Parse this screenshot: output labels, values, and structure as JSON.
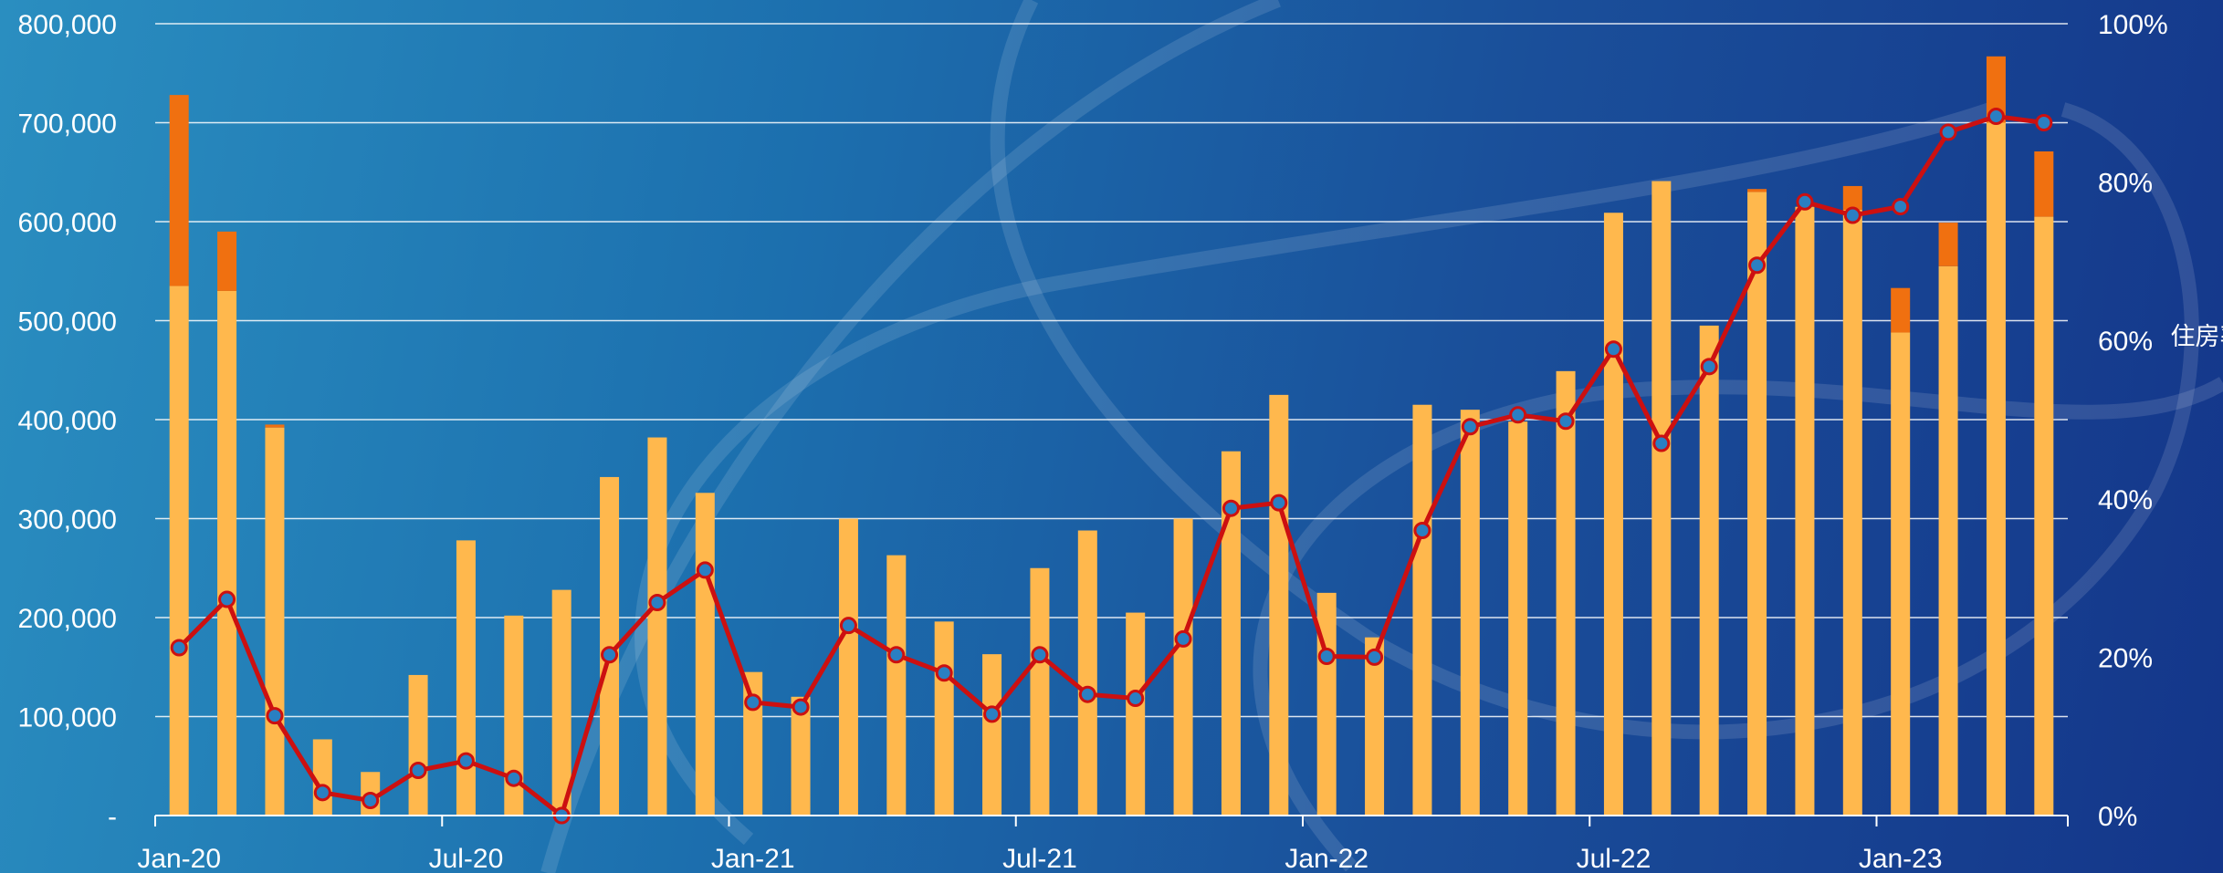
{
  "chart_data": {
    "type": "bar",
    "stacked": true,
    "categories": [
      "Jan-20",
      "Feb-20",
      "Mar-20",
      "Apr-20",
      "May-20",
      "Jun-20",
      "Jul-20",
      "Aug-20",
      "Sep-20",
      "Oct-20",
      "Nov-20",
      "Dec-20",
      "Jan-21",
      "Feb-21",
      "Mar-21",
      "Apr-21",
      "May-21",
      "Jun-21",
      "Jul-21",
      "Aug-21",
      "Sep-21",
      "Oct-21",
      "Nov-21",
      "Dec-21",
      "Jan-22",
      "Feb-22",
      "Mar-22",
      "Apr-22",
      "May-22",
      "Jun-22",
      "Jul-22",
      "Aug-22",
      "Sep-22",
      "Oct-22",
      "Nov-22",
      "Dec-22",
      "Jan-23",
      "Feb-23",
      "Mar-23",
      "Apr-23"
    ],
    "x_tick_labels": [
      {
        "index": 0,
        "label": "Jan-20"
      },
      {
        "index": 6,
        "label": "Jul-20"
      },
      {
        "index": 12,
        "label": "Jan-21"
      },
      {
        "index": 18,
        "label": "Jul-21"
      },
      {
        "index": 24,
        "label": "Jan-22"
      },
      {
        "index": 30,
        "label": "Jul-22"
      },
      {
        "index": 36,
        "label": "Jan-23"
      }
    ],
    "series": [
      {
        "type": "bar",
        "color": "#ffb84d",
        "values": [
          535000,
          530000,
          392000,
          77000,
          44000,
          142000,
          278000,
          202000,
          228000,
          342000,
          382000,
          326000,
          145000,
          120000,
          300000,
          263000,
          196000,
          163000,
          250000,
          288000,
          205000,
          300000,
          368000,
          425000,
          225000,
          180000,
          415000,
          410000,
          398000,
          449000,
          609000,
          641000,
          495000,
          630000,
          615000,
          612000,
          488000,
          555000,
          700000,
          605000
        ]
      },
      {
        "type": "bar",
        "color": "#f07010",
        "values": [
          193000,
          60000,
          3000,
          0,
          0,
          0,
          0,
          0,
          0,
          0,
          0,
          0,
          0,
          0,
          0,
          0,
          0,
          0,
          0,
          0,
          0,
          0,
          0,
          0,
          0,
          0,
          0,
          0,
          0,
          0,
          0,
          0,
          0,
          3000,
          0,
          24000,
          45000,
          44000,
          67000,
          66000
        ]
      },
      {
        "type": "line",
        "axis": "right",
        "color": "#cc1010",
        "marker_color": "#2a7fc2",
        "values": [
          21.2,
          27.3,
          12.6,
          2.9,
          1.9,
          5.7,
          6.9,
          4.7,
          0.0,
          20.3,
          26.9,
          31.0,
          14.3,
          13.7,
          24.0,
          20.3,
          18.0,
          12.8,
          20.3,
          15.3,
          14.8,
          22.3,
          38.8,
          39.5,
          20.1,
          20.0,
          36.0,
          49.1,
          50.6,
          49.8,
          58.9,
          47.0,
          56.7,
          69.5,
          77.5,
          75.8,
          76.9,
          86.3,
          88.3,
          87.5
        ]
      }
    ],
    "y_axis_left": {
      "min": 0,
      "max": 800000,
      "tick_labels": [
        "-",
        "100,000",
        "200,000",
        "300,000",
        "400,000",
        "500,000",
        "600,000",
        "700,000",
        "800,000"
      ]
    },
    "y_axis_right": {
      "min": 0,
      "max": 100,
      "title": "住房率",
      "tick_labels": [
        "0%",
        "20%",
        "40%",
        "60%",
        "80%",
        "100%"
      ]
    },
    "grid": true,
    "colors": {
      "grid": "#ffffff",
      "axis": "#ffffff",
      "text": "#ffffff"
    }
  }
}
